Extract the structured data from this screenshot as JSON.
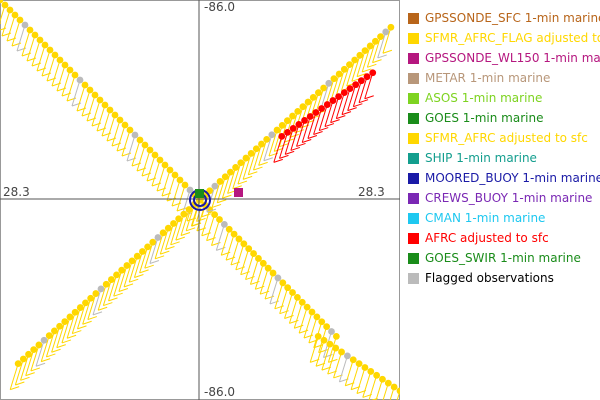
{
  "chart_data": {
    "type": "scatter",
    "title": "",
    "xlabel": "",
    "ylabel": "",
    "axis_labels": {
      "top": "-86.0",
      "bottom": "-86.0",
      "left": "28.3",
      "right": "28.3"
    },
    "x_range": [
      -88.2,
      -83.8
    ],
    "y_range": [
      26.1,
      30.5
    ],
    "center": {
      "lon": -86.0,
      "lat": 28.3
    },
    "grid": false,
    "legend_position": "right",
    "legend": [
      {
        "label": "GPSSONDE_SFC 1-min marine",
        "color": "#b8651a"
      },
      {
        "label": "SFMR_AFRC_FLAG adjusted to",
        "color": "#ffd700"
      },
      {
        "label": "GPSSONDE_WL150 1-min mar",
        "color": "#b5177f"
      },
      {
        "label": "METAR 1-min marine",
        "color": "#b8977a"
      },
      {
        "label": "ASOS 1-min marine",
        "color": "#7ed321"
      },
      {
        "label": "GOES 1-min marine",
        "color": "#1a8c1a"
      },
      {
        "label": "SFMR_AFRC adjusted to sfc",
        "color": "#ffd700"
      },
      {
        "label": "SHIP 1-min marine",
        "color": "#139e8e"
      },
      {
        "label": "MOORED_BUOY 1-min marine",
        "color": "#1a1aa6"
      },
      {
        "label": "CREWS_BUOY 1-min marine",
        "color": "#7a28b4"
      },
      {
        "label": "CMAN 1-min marine",
        "color": "#1ec8f0"
      },
      {
        "label": "AFRC adjusted to sfc",
        "color": "#ff0000"
      },
      {
        "label": "GOES_SWIR 1-min marine",
        "color": "#1a8c1a"
      },
      {
        "label": "Flagged observations",
        "color": "#bbbbbb",
        "text_color": "#000000"
      }
    ],
    "series": [
      {
        "name": "SFMR_AFRC adjusted to sfc",
        "color": "#ffd700",
        "lon": [
          -88.2,
          -86.0
        ],
        "lat": [
          30.5,
          28.3
        ]
      },
      {
        "name": "SFMR_AFRC adjusted to sfc",
        "color": "#ffd700",
        "lon": [
          -86.0,
          -84.5
        ],
        "lat": [
          28.3,
          26.8
        ]
      },
      {
        "name": "SFMR_AFRC adjusted to sfc",
        "color": "#ffd700",
        "lon": [
          -88.0,
          -83.9
        ],
        "lat": [
          26.5,
          30.2
        ]
      },
      {
        "name": "AFRC adjusted to sfc",
        "color": "#ff0000",
        "lon": [
          -85.1,
          -84.1
        ],
        "lat": [
          29.0,
          29.7
        ]
      },
      {
        "name": "SFMR_AFRC adjusted to sfc",
        "color": "#ffd700",
        "lon": [
          -84.7,
          -83.8
        ],
        "lat": [
          26.8,
          26.2
        ]
      }
    ],
    "station": {
      "lon": -86.0,
      "lat": 28.3,
      "label": "MOORED_BUOY 1-min marine"
    }
  }
}
